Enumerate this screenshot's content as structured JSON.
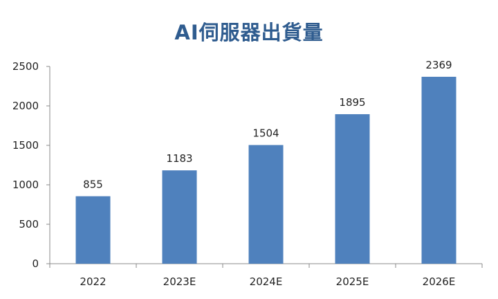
{
  "chart_data": {
    "type": "bar",
    "title": "AI伺服器出貨量",
    "categories": [
      "2022",
      "2023E",
      "2024E",
      "2025E",
      "2026E"
    ],
    "values": [
      855,
      1183,
      1504,
      1895,
      2369
    ],
    "xlabel": "",
    "ylabel": "",
    "ylim": [
      0,
      2500
    ],
    "yticks": [
      0,
      500,
      1000,
      1500,
      2000,
      2500
    ],
    "grid": false,
    "legend": "none",
    "data_labels": true,
    "bar_color": "#4F81BD",
    "title_color": "#2F5C8F"
  }
}
